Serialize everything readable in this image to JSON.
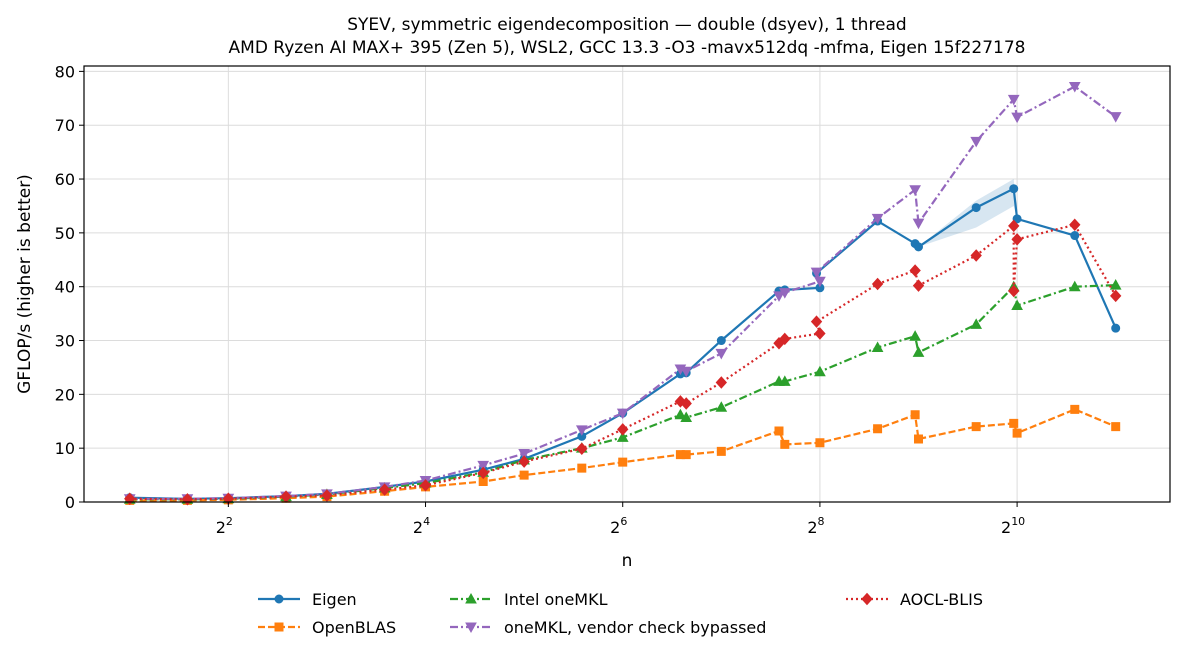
{
  "chart_data": {
    "type": "line",
    "title": "SYEV, symmetric eigendecomposition — double (dsyev), 1 thread",
    "subtitle": "AMD Ryzen AI MAX+ 395 (Zen 5), WSL2, GCC 13.3 -O3 -mavx512dq -mfma, Eigen 15f227178",
    "xlabel": "n",
    "ylabel": "GFLOP/s (higher is better)",
    "xscale": "log2",
    "xlim": [
      1.45,
      3000
    ],
    "ylim": [
      0,
      81
    ],
    "yticks": [
      0,
      10,
      20,
      30,
      40,
      50,
      60,
      70,
      80
    ],
    "xticks": [
      {
        "value": 4,
        "base": "2",
        "exp": "2"
      },
      {
        "value": 16,
        "base": "2",
        "exp": "4"
      },
      {
        "value": 64,
        "base": "2",
        "exp": "6"
      },
      {
        "value": 256,
        "base": "2",
        "exp": "8"
      },
      {
        "value": 1024,
        "base": "2",
        "exp": "10"
      }
    ],
    "grid": true,
    "legend_position": "bottom",
    "series": [
      {
        "name": "Eigen",
        "color": "#1f77b4",
        "marker": "circle",
        "dash": "solid",
        "points": [
          [
            2,
            0.8
          ],
          [
            3,
            0.6
          ],
          [
            4,
            0.7
          ],
          [
            6,
            1.1
          ],
          [
            8,
            1.5
          ],
          [
            12,
            2.8
          ],
          [
            16,
            3.8
          ],
          [
            24,
            6.0
          ],
          [
            32,
            8.0
          ],
          [
            48,
            12.2
          ],
          [
            64,
            16.5
          ],
          [
            96,
            23.8
          ],
          [
            100,
            24.0
          ],
          [
            128,
            30.0
          ],
          [
            192,
            39.2
          ],
          [
            200,
            39.4
          ],
          [
            256,
            39.8
          ],
          [
            250,
            42.5
          ],
          [
            384,
            52.2
          ],
          [
            500,
            48.0
          ],
          [
            512,
            47.4
          ],
          [
            768,
            54.7
          ],
          [
            1000,
            58.2
          ],
          [
            1024,
            52.6
          ],
          [
            1536,
            49.5
          ],
          [
            2048,
            32.3
          ]
        ],
        "band": [
          [
            512,
            47.4,
            47.4
          ],
          [
            768,
            51.0,
            56.0
          ],
          [
            1000,
            55.0,
            60.0
          ],
          [
            1024,
            52.6,
            52.6
          ]
        ]
      },
      {
        "name": "OpenBLAS",
        "color": "#ff7f0e",
        "marker": "square",
        "dash": "dashed",
        "points": [
          [
            2,
            0.3
          ],
          [
            3,
            0.3
          ],
          [
            4,
            0.4
          ],
          [
            6,
            0.7
          ],
          [
            8,
            1.0
          ],
          [
            12,
            2.0
          ],
          [
            16,
            2.8
          ],
          [
            24,
            3.8
          ],
          [
            32,
            5.0
          ],
          [
            48,
            6.3
          ],
          [
            64,
            7.4
          ],
          [
            96,
            8.8
          ],
          [
            100,
            8.8
          ],
          [
            128,
            9.4
          ],
          [
            192,
            13.2
          ],
          [
            200,
            10.7
          ],
          [
            256,
            11.0
          ],
          [
            384,
            13.6
          ],
          [
            500,
            16.2
          ],
          [
            512,
            11.7
          ],
          [
            768,
            14.0
          ],
          [
            1000,
            14.6
          ],
          [
            1024,
            12.8
          ],
          [
            1536,
            17.2
          ],
          [
            2048,
            14.0
          ]
        ]
      },
      {
        "name": "Intel oneMKL",
        "color": "#2ca02c",
        "marker": "triangle-up",
        "dash": "dashdot",
        "points": [
          [
            2,
            0.5
          ],
          [
            3,
            0.5
          ],
          [
            4,
            0.6
          ],
          [
            6,
            1.0
          ],
          [
            8,
            1.4
          ],
          [
            12,
            2.6
          ],
          [
            16,
            3.5
          ],
          [
            24,
            5.5
          ],
          [
            32,
            7.8
          ],
          [
            48,
            10.0
          ],
          [
            64,
            12.0
          ],
          [
            96,
            16.2
          ],
          [
            100,
            15.7
          ],
          [
            128,
            17.6
          ],
          [
            192,
            22.4
          ],
          [
            200,
            22.4
          ],
          [
            256,
            24.2
          ],
          [
            384,
            28.7
          ],
          [
            500,
            30.8
          ],
          [
            512,
            27.8
          ],
          [
            768,
            33.0
          ],
          [
            1000,
            40.0
          ],
          [
            1024,
            36.5
          ],
          [
            1536,
            40.0
          ],
          [
            2048,
            40.3
          ]
        ]
      },
      {
        "name": "oneMKL, vendor check bypassed",
        "color": "#9467bd",
        "marker": "triangle-down",
        "dash": "dashdot",
        "points": [
          [
            2,
            0.6
          ],
          [
            3,
            0.6
          ],
          [
            4,
            0.7
          ],
          [
            6,
            1.1
          ],
          [
            8,
            1.5
          ],
          [
            12,
            2.8
          ],
          [
            16,
            4.0
          ],
          [
            24,
            6.8
          ],
          [
            32,
            9.0
          ],
          [
            48,
            13.4
          ],
          [
            64,
            16.5
          ],
          [
            96,
            24.7
          ],
          [
            100,
            24.3
          ],
          [
            128,
            27.6
          ],
          [
            192,
            38.3
          ],
          [
            200,
            38.9
          ],
          [
            256,
            41.0
          ],
          [
            250,
            42.7
          ],
          [
            384,
            52.7
          ],
          [
            500,
            58.0
          ],
          [
            512,
            51.8
          ],
          [
            768,
            67.0
          ],
          [
            1000,
            74.8
          ],
          [
            1024,
            71.5
          ],
          [
            1536,
            77.2
          ],
          [
            2048,
            71.6
          ]
        ]
      },
      {
        "name": "AOCL-BLIS",
        "color": "#d62728",
        "marker": "diamond",
        "dash": "dotted",
        "points": [
          [
            2,
            0.6
          ],
          [
            3,
            0.5
          ],
          [
            4,
            0.6
          ],
          [
            6,
            1.0
          ],
          [
            8,
            1.2
          ],
          [
            12,
            2.3
          ],
          [
            16,
            3.1
          ],
          [
            24,
            5.4
          ],
          [
            32,
            7.5
          ],
          [
            48,
            9.9
          ],
          [
            64,
            13.5
          ],
          [
            96,
            18.7
          ],
          [
            100,
            18.3
          ],
          [
            128,
            22.2
          ],
          [
            192,
            29.5
          ],
          [
            200,
            30.3
          ],
          [
            256,
            31.3
          ],
          [
            250,
            33.5
          ],
          [
            384,
            40.5
          ],
          [
            500,
            43.0
          ],
          [
            512,
            40.2
          ],
          [
            768,
            45.8
          ],
          [
            1000,
            51.3
          ],
          [
            1000,
            39.2
          ],
          [
            1024,
            48.8
          ],
          [
            1536,
            51.5
          ],
          [
            2048,
            38.3
          ]
        ]
      }
    ]
  }
}
